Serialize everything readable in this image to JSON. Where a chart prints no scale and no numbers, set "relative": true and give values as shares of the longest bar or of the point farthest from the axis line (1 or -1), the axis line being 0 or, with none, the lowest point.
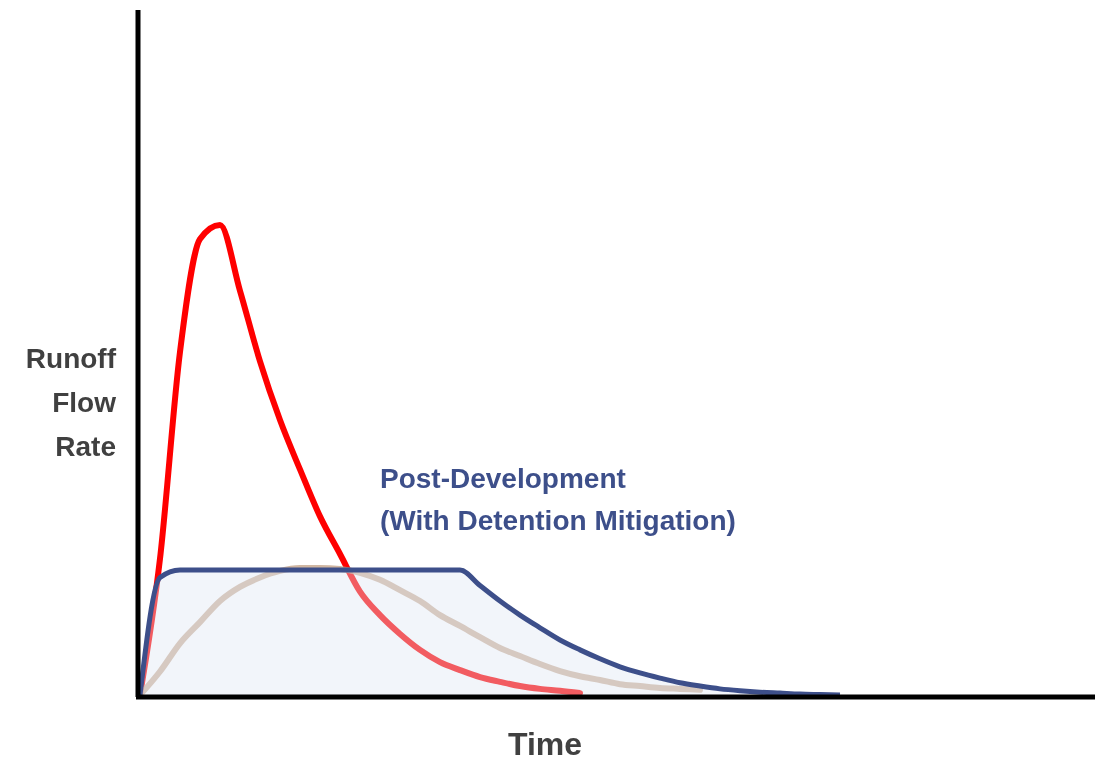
{
  "chart_data": {
    "type": "line",
    "relative": true,
    "xlabel": "Time",
    "ylabel": "Runoff Flow Rate",
    "categories": [
      null,
      null,
      null,
      null,
      null,
      null,
      null,
      null,
      null,
      null,
      null,
      null,
      null,
      null,
      null,
      null,
      null,
      null,
      null,
      null,
      null,
      null,
      null,
      null,
      null,
      null,
      null,
      null,
      null,
      null,
      null,
      null,
      null,
      null,
      null,
      null,
      null,
      null,
      null,
      null,
      null,
      null,
      null,
      null,
      null,
      null,
      null,
      null
    ],
    "series": [
      {
        "color": "#ff0000",
        "values": [
          0,
          0.29,
          0.73,
          0.97,
          1,
          0.86,
          0.71,
          0.585,
          0.48,
          0.38,
          0.3,
          0.22,
          0.17,
          0.13,
          0.096,
          0.07,
          0.053,
          0.038,
          0.028,
          0.019,
          0.013,
          0.009,
          0.004,
          null,
          null,
          null,
          null,
          null,
          null,
          null,
          null,
          null,
          null,
          null,
          null,
          null,
          null,
          null,
          null,
          null,
          null,
          null,
          null,
          null,
          null,
          null,
          null,
          null
        ]
      },
      {
        "color": "#c4a48a",
        "values": [
          0,
          0.05,
          0.11,
          0.155,
          0.2,
          0.23,
          0.25,
          0.264,
          0.27,
          0.27,
          0.268,
          0.26,
          0.245,
          0.223,
          0.2,
          0.17,
          0.147,
          0.123,
          0.1,
          0.083,
          0.066,
          0.051,
          0.04,
          0.032,
          0.023,
          0.019,
          0.015,
          0.013,
          0.011,
          null,
          null,
          null,
          null,
          null,
          null,
          null,
          null,
          null,
          null,
          null,
          null,
          null,
          null,
          null,
          null,
          null,
          null,
          null
        ]
      },
      {
        "type": "area",
        "name": "Post-Development (With Detention Mitigation)",
        "color": "#3d4f8a",
        "values": [
          0,
          0.25,
          0.266,
          0.266,
          0.266,
          0.266,
          0.266,
          0.266,
          0.266,
          0.266,
          0.266,
          0.266,
          0.266,
          0.266,
          0.266,
          0.266,
          0.266,
          0.233,
          0.2,
          0.17,
          0.143,
          0.117,
          0.096,
          0.077,
          0.06,
          0.047,
          0.036,
          0.026,
          0.019,
          0.013,
          0.009,
          0.006,
          0.004,
          0.002,
          0.001,
          0,
          null,
          null,
          null,
          null,
          null,
          null,
          null,
          null,
          null,
          null,
          null,
          null
        ]
      }
    ]
  }
}
